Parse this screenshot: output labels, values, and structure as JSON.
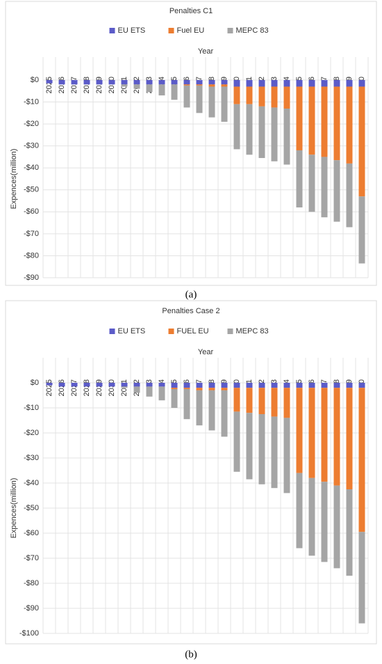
{
  "chart_data": [
    {
      "type": "bar",
      "stacked": true,
      "title": "Penalties C1",
      "x_label": "Year",
      "y_label": "Expences(million)",
      "caption": "(a)",
      "categories": [
        "2025",
        "2026",
        "2027",
        "2028",
        "2029",
        "2030",
        "2031",
        "2032",
        "2033",
        "2034",
        "2035",
        "2036",
        "2037",
        "2038",
        "2039",
        "2040",
        "2041",
        "2042",
        "2043",
        "2044",
        "2045",
        "2046",
        "2047",
        "2048",
        "2049",
        "2050"
      ],
      "series": [
        {
          "name": "EU ETS",
          "color": "#5b5bc8",
          "values": [
            -1.5,
            -2,
            -2,
            -2,
            -2,
            -2,
            -2,
            -2,
            -2,
            -2,
            -2,
            -2,
            -2,
            -2,
            -2,
            -3,
            -3,
            -3,
            -3,
            -3,
            -3,
            -3,
            -3,
            -3,
            -3,
            -3
          ]
        },
        {
          "name": "Fuel EU",
          "color": "#ed7d31",
          "values": [
            0,
            0,
            0,
            0,
            0,
            0,
            0,
            0,
            0,
            0,
            0,
            -0.5,
            -0.5,
            -1,
            -1,
            -8,
            -8,
            -9,
            -9.5,
            -10,
            -29,
            -31,
            -32,
            -33.5,
            -35,
            -50
          ]
        },
        {
          "name": "MEPC 83",
          "color": "#a5a5a5",
          "values": [
            0,
            0,
            0,
            0,
            0,
            0,
            -1,
            -2,
            -3.5,
            -5,
            -7,
            -10,
            -12.5,
            -14,
            -16,
            -20.5,
            -23,
            -23.5,
            -24.5,
            -25.5,
            -26,
            -26,
            -27.5,
            -28,
            -29,
            -30.5
          ]
        }
      ],
      "ylim": [
        -90,
        0
      ],
      "yticks": [
        {
          "value": 0,
          "label": "$0"
        },
        {
          "value": -10,
          "label": "-$10"
        },
        {
          "value": -20,
          "label": "-$20"
        },
        {
          "value": -30,
          "label": "-$30"
        },
        {
          "value": -40,
          "label": "-$40"
        },
        {
          "value": -50,
          "label": "-$50"
        },
        {
          "value": -60,
          "label": "-$60"
        },
        {
          "value": -70,
          "label": "-$70"
        },
        {
          "value": -80,
          "label": "-$80"
        },
        {
          "value": -90,
          "label": "-$90"
        }
      ],
      "grid": true
    },
    {
      "type": "bar",
      "stacked": true,
      "title": "Penalties Case 2",
      "x_label": "Year",
      "y_label": "Expences(million)",
      "caption": "(b)",
      "categories": [
        "2025",
        "2026",
        "2027",
        "2028",
        "2029",
        "2030",
        "2031",
        "2032",
        "2033",
        "2034",
        "2035",
        "2036",
        "2037",
        "2038",
        "2039",
        "2040",
        "2041",
        "2042",
        "2043",
        "2044",
        "2045",
        "2046",
        "2047",
        "2048",
        "2049",
        "2050"
      ],
      "series": [
        {
          "name": "EU ETS",
          "color": "#5b5bc8",
          "values": [
            -1,
            -1.5,
            -1.5,
            -1.5,
            -1.5,
            -1.5,
            -1.5,
            -1.5,
            -1.5,
            -1.5,
            -2,
            -2,
            -2,
            -2,
            -2,
            -2,
            -2,
            -2,
            -2,
            -2,
            -2,
            -2,
            -2,
            -2,
            -2,
            -2
          ]
        },
        {
          "name": "FUEL EU",
          "color": "#ed7d31",
          "values": [
            0,
            0,
            0,
            0,
            0,
            0,
            0,
            0,
            0,
            0,
            -0.5,
            -0.5,
            -1,
            -1,
            -1,
            -9.5,
            -10,
            -10.5,
            -11.5,
            -12,
            -34,
            -36,
            -37.5,
            -39,
            -40.5,
            -57.5
          ]
        },
        {
          "name": "MEPC 83",
          "color": "#a5a5a5",
          "values": [
            0,
            0,
            0,
            0,
            0,
            0,
            -0.5,
            -2.5,
            -4,
            -5.5,
            -7.5,
            -12,
            -14,
            -16,
            -18.5,
            -24,
            -26.5,
            -28,
            -28.5,
            -30,
            -30,
            -31,
            -32,
            -33,
            -34.5,
            -36.5
          ]
        }
      ],
      "ylim": [
        -100,
        0
      ],
      "yticks": [
        {
          "value": 0,
          "label": "$0"
        },
        {
          "value": -10,
          "label": "-$10"
        },
        {
          "value": -20,
          "label": "-$20"
        },
        {
          "value": -30,
          "label": "-$30"
        },
        {
          "value": -40,
          "label": "-$40"
        },
        {
          "value": -50,
          "label": "-$50"
        },
        {
          "value": -60,
          "label": "-$60"
        },
        {
          "value": -70,
          "label": "-$70"
        },
        {
          "value": -80,
          "label": "-$80"
        },
        {
          "value": -90,
          "label": "-$90"
        },
        {
          "value": -100,
          "label": "-$100"
        }
      ],
      "grid": true
    }
  ]
}
